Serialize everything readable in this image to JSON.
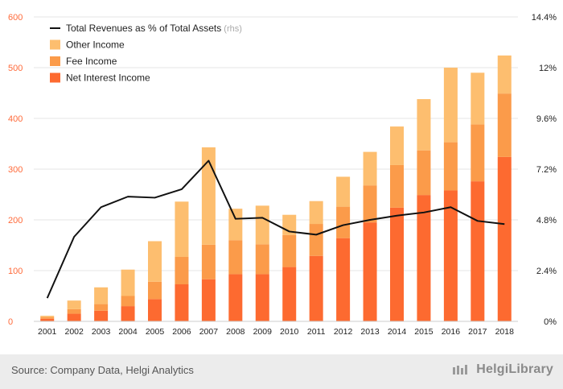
{
  "colors": {
    "net_interest": "#fd6a30",
    "fee": "#fb9b4a",
    "other": "#fdbe6f",
    "line": "#111111",
    "left_axis_text": "#ff6a3a",
    "right_axis_text": "#222222",
    "grid": "#e6e6e6"
  },
  "chart_data": {
    "type": "bar",
    "stacked": true,
    "categories": [
      "2001",
      "2002",
      "2003",
      "2004",
      "2005",
      "2006",
      "2007",
      "2008",
      "2009",
      "2010",
      "2011",
      "2012",
      "2013",
      "2014",
      "2015",
      "2016",
      "2017",
      "2018"
    ],
    "series": [
      {
        "name": "Net Interest Income",
        "axis": "left",
        "values": [
          5,
          15,
          21,
          30,
          44,
          73,
          83,
          93,
          93,
          107,
          129,
          164,
          195,
          224,
          249,
          258,
          276,
          324
        ]
      },
      {
        "name": "Fee Income",
        "axis": "left",
        "values": [
          3,
          9,
          13,
          20,
          34,
          54,
          68,
          67,
          59,
          63,
          63,
          62,
          73,
          84,
          88,
          95,
          112,
          125
        ]
      },
      {
        "name": "Other Income",
        "axis": "left",
        "values": [
          3,
          17,
          33,
          52,
          80,
          109,
          192,
          62,
          76,
          40,
          45,
          59,
          66,
          76,
          101,
          147,
          102,
          75
        ]
      },
      {
        "name": "Total Revenues as % of Total Assets",
        "name_suffix": "(rhs)",
        "type": "line",
        "axis": "right",
        "values": [
          1.1,
          4.0,
          5.4,
          5.9,
          5.85,
          6.25,
          7.6,
          4.85,
          4.9,
          4.25,
          4.1,
          4.55,
          4.8,
          5.0,
          5.15,
          5.4,
          4.75,
          4.6
        ]
      }
    ],
    "y_left": {
      "ylim": [
        0,
        600
      ],
      "ticks": [
        "0",
        "100",
        "200",
        "300",
        "400",
        "500",
        "600"
      ]
    },
    "y_right": {
      "ylim": [
        0,
        14.4
      ],
      "ticks": [
        "0%",
        "2.4%",
        "4.8%",
        "7.2%",
        "9.6%",
        "12%",
        "14.4%"
      ]
    },
    "legend_position": "top-left",
    "grid": true
  },
  "footer": {
    "source": "Source: Company Data, Helgi Analytics",
    "brand": "HelgiLibrary"
  }
}
